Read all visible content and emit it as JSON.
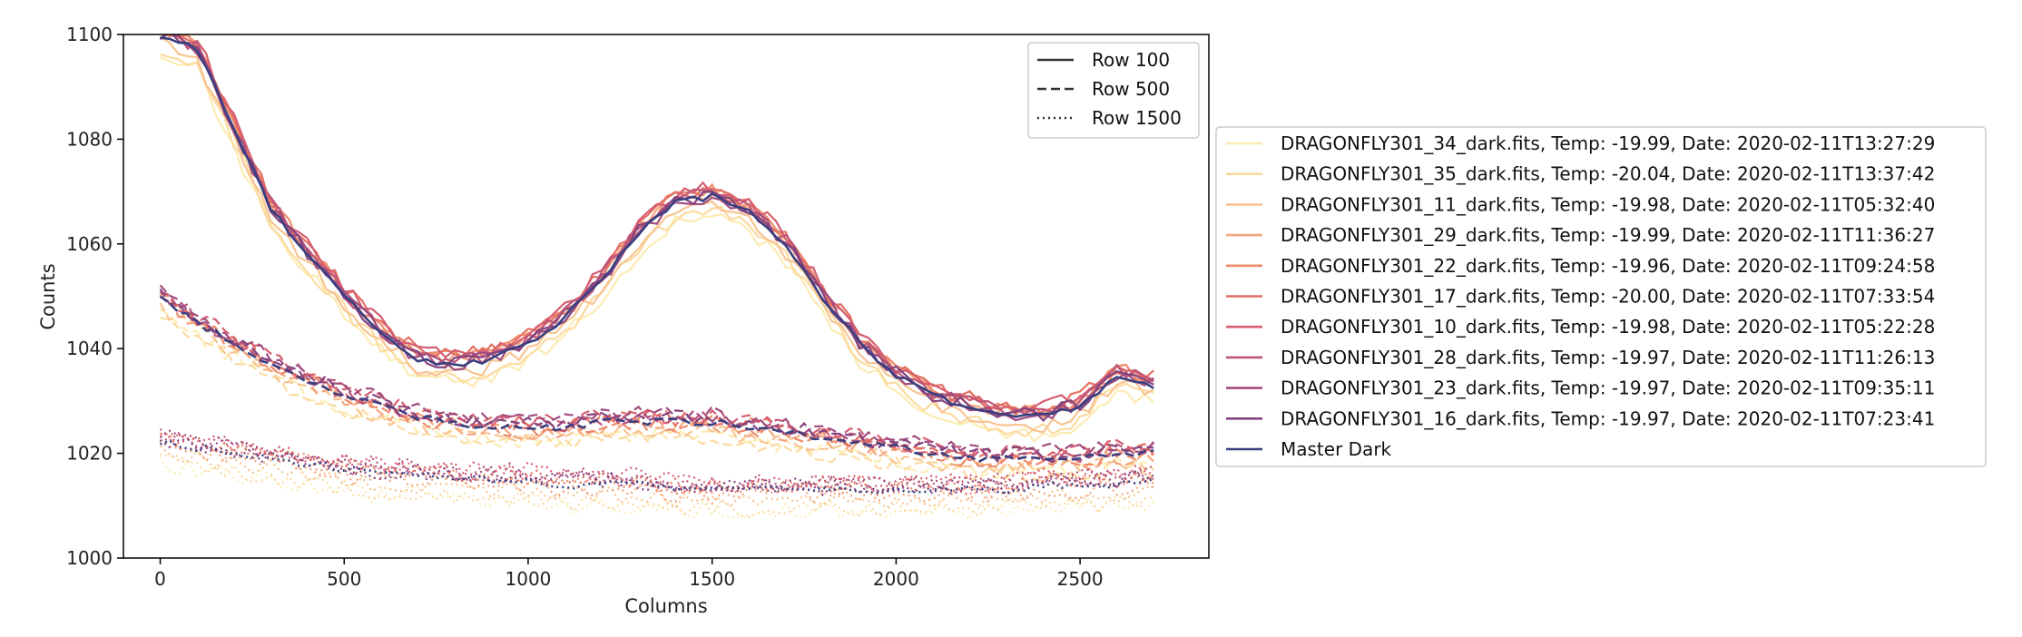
{
  "chart_data": {
    "type": "line",
    "title": "",
    "xlabel": "Columns",
    "ylabel": "Counts",
    "xlim": [
      -100,
      2850
    ],
    "ylim": [
      1000,
      1100
    ],
    "xticks": [
      0,
      500,
      1000,
      1500,
      2000,
      2500
    ],
    "yticks": [
      1000,
      1020,
      1040,
      1060,
      1080,
      1100
    ],
    "grid": false,
    "style_legend": {
      "placement": "upper-right-inside",
      "entries": [
        {
          "label": "Row 100",
          "dash": "solid"
        },
        {
          "label": "Row 500",
          "dash": "dashed"
        },
        {
          "label": "Row 1500",
          "dash": "dotted"
        }
      ]
    },
    "series_legend": {
      "placement": "outside-right",
      "entries": [
        {
          "label": "DRAGONFLY301_34_dark.fits, Temp: -19.99, Date: 2020-02-11T13:27:29",
          "color": "#fcecb3"
        },
        {
          "label": "DRAGONFLY301_35_dark.fits, Temp: -20.04, Date: 2020-02-11T13:37:42",
          "color": "#fbdba0"
        },
        {
          "label": "DRAGONFLY301_11_dark.fits, Temp: -19.98, Date: 2020-02-11T05:32:40",
          "color": "#f8c491"
        },
        {
          "label": "DRAGONFLY301_29_dark.fits, Temp: -19.99, Date: 2020-02-11T11:36:27",
          "color": "#f4a67d"
        },
        {
          "label": "DRAGONFLY301_22_dark.fits, Temp: -19.96, Date: 2020-02-11T09:24:58",
          "color": "#ee8a6c"
        },
        {
          "label": "DRAGONFLY301_17_dark.fits, Temp: -20.00, Date: 2020-02-11T07:33:54",
          "color": "#e47064"
        },
        {
          "label": "DRAGONFLY301_10_dark.fits, Temp: -19.98, Date: 2020-02-11T05:22:28",
          "color": "#d55e70"
        },
        {
          "label": "DRAGONFLY301_28_dark.fits, Temp: -19.97, Date: 2020-02-11T11:26:13",
          "color": "#be5678"
        },
        {
          "label": "DRAGONFLY301_23_dark.fits, Temp: -19.97, Date: 2020-02-11T09:35:11",
          "color": "#a04c7e"
        },
        {
          "label": "DRAGONFLY301_16_dark.fits, Temp: -19.97, Date: 2020-02-11T07:23:41",
          "color": "#84437e"
        },
        {
          "label": "Master Dark",
          "color": "#3b3f80"
        }
      ]
    },
    "x": [
      0,
      100,
      200,
      300,
      400,
      500,
      600,
      700,
      800,
      900,
      1000,
      1100,
      1200,
      1300,
      1400,
      1500,
      1600,
      1700,
      1800,
      1900,
      2000,
      2100,
      2200,
      2300,
      2400,
      2500,
      2600,
      2700
    ],
    "rows": [
      {
        "row": "Row 100",
        "dash": "solid",
        "values": [
          1100,
          1097,
          1082,
          1067,
          1058,
          1050,
          1043,
          1038,
          1037,
          1038,
          1041,
          1046,
          1053,
          1062,
          1068,
          1069,
          1066,
          1060,
          1050,
          1041,
          1035,
          1031,
          1029,
          1027,
          1027,
          1029,
          1035,
          1033
        ],
        "offsets": [
          -3.5,
          -2.5,
          -1.6,
          0.8,
          1.2,
          1.6,
          1.8,
          0.6,
          0.2,
          0.3
        ]
      },
      {
        "row": "Row 500",
        "dash": "dashed",
        "values": [
          1050,
          1045,
          1041,
          1037,
          1034,
          1031,
          1029,
          1027,
          1026,
          1025,
          1025,
          1025,
          1026,
          1026,
          1026,
          1026,
          1025,
          1024,
          1023,
          1022,
          1021,
          1020,
          1019,
          1019,
          1019,
          1019,
          1020,
          1020
        ],
        "offsets": [
          -2.5,
          -3.0,
          -1.8,
          -0.8,
          -0.2,
          0.6,
          1.2,
          0.8,
          1.5,
          0.8
        ]
      },
      {
        "row": "Row 1500",
        "dash": "dotted",
        "values": [
          1022,
          1021,
          1020,
          1019,
          1018,
          1017,
          1016,
          1016,
          1015,
          1015,
          1015,
          1014,
          1014,
          1014,
          1013,
          1013,
          1013,
          1013,
          1013,
          1013,
          1013,
          1013,
          1013,
          1013,
          1014,
          1014,
          1014,
          1015
        ],
        "offsets": [
          -4.0,
          -3.5,
          -2.0,
          -1.0,
          0.5,
          1.2,
          1.8,
          1.5,
          1.0,
          0.6
        ]
      }
    ]
  }
}
